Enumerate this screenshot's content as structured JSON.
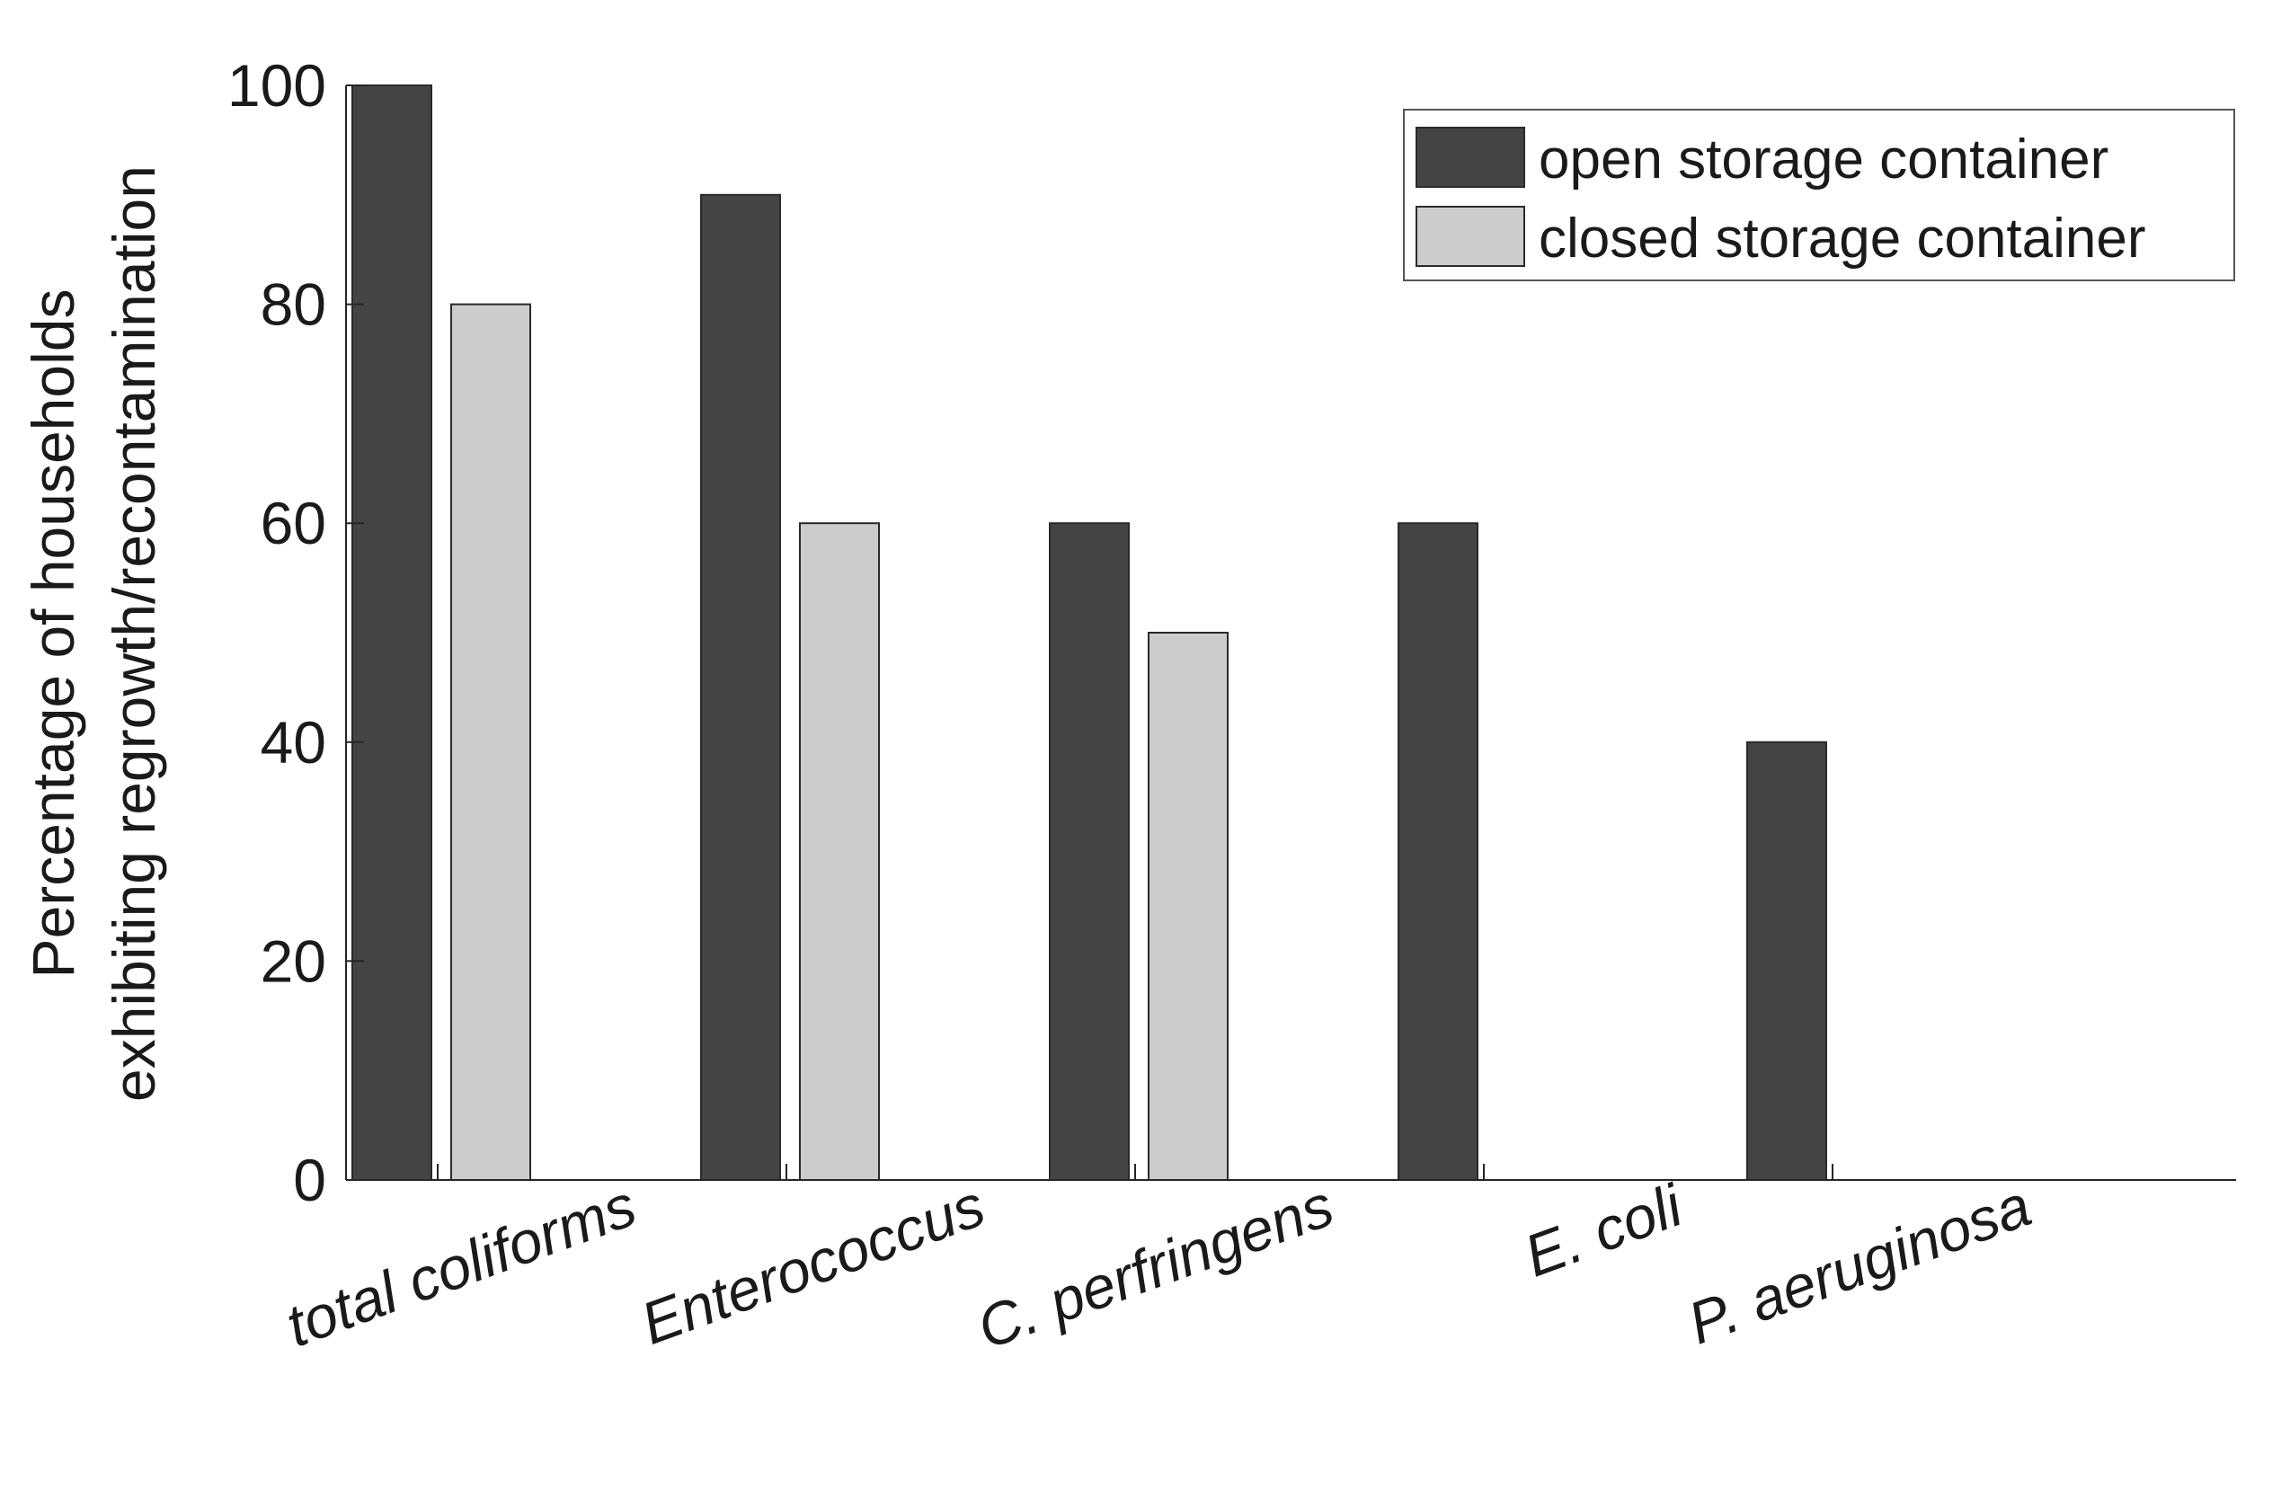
{
  "chart_data": {
    "type": "bar",
    "title": "",
    "xlabel": "",
    "ylabel_lines": [
      "Percentage of households",
      "exhibiting regrowth/recontamination"
    ],
    "ylim": [
      0,
      100
    ],
    "yticks": [
      0,
      20,
      40,
      60,
      80,
      100
    ],
    "categories": [
      "total coliforms",
      "Enterococcus",
      "C. perfringens",
      "E. coli",
      "P. aeruginosa"
    ],
    "series": [
      {
        "name": "open storage container",
        "color": "#444444",
        "values": [
          100,
          90,
          60,
          60,
          40
        ]
      },
      {
        "name": "closed storage container",
        "color": "#cccccc",
        "values": [
          80,
          60,
          50,
          0,
          0
        ]
      }
    ],
    "legend_position": "top-right",
    "grid": false
  }
}
